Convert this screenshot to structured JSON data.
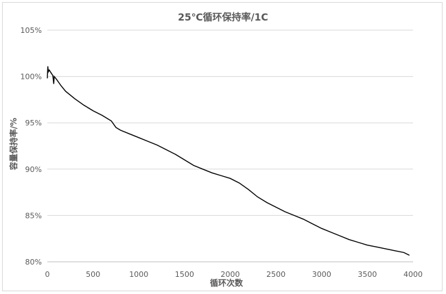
{
  "chart_data": {
    "type": "line",
    "title": "25℃循环保持率/1C",
    "xlabel": "循环次数",
    "ylabel": "容量保持率/%",
    "xlim": [
      0,
      4000
    ],
    "ylim": [
      80,
      105
    ],
    "x_ticks": [
      0,
      500,
      1000,
      1500,
      2000,
      2500,
      3000,
      3500,
      4000
    ],
    "x_tick_labels": [
      "0",
      "500",
      "1000",
      "1500",
      "2000",
      "2500",
      "3000",
      "3500",
      "4000"
    ],
    "y_ticks": [
      80,
      85,
      90,
      95,
      100,
      105
    ],
    "y_tick_labels": [
      "80%",
      "85%",
      "90%",
      "95%",
      "100%",
      "105%"
    ],
    "grid": "horizontal",
    "legend": "none",
    "series": [
      {
        "color": "#000000",
        "points": [
          [
            0,
            99.8
          ],
          [
            5,
            101.1
          ],
          [
            10,
            100.5
          ],
          [
            20,
            100.7
          ],
          [
            40,
            100.4
          ],
          [
            60,
            100.1
          ],
          [
            70,
            99.2
          ],
          [
            75,
            100.0
          ],
          [
            100,
            99.7
          ],
          [
            150,
            99.0
          ],
          [
            200,
            98.4
          ],
          [
            300,
            97.6
          ],
          [
            400,
            96.9
          ],
          [
            500,
            96.3
          ],
          [
            600,
            95.8
          ],
          [
            700,
            95.2
          ],
          [
            750,
            94.5
          ],
          [
            800,
            94.2
          ],
          [
            900,
            93.8
          ],
          [
            1000,
            93.4
          ],
          [
            1100,
            93.0
          ],
          [
            1200,
            92.6
          ],
          [
            1300,
            92.1
          ],
          [
            1400,
            91.6
          ],
          [
            1500,
            91.0
          ],
          [
            1600,
            90.4
          ],
          [
            1700,
            90.0
          ],
          [
            1800,
            89.6
          ],
          [
            1900,
            89.3
          ],
          [
            2000,
            89.0
          ],
          [
            2100,
            88.5
          ],
          [
            2200,
            87.8
          ],
          [
            2300,
            87.0
          ],
          [
            2400,
            86.4
          ],
          [
            2500,
            85.9
          ],
          [
            2600,
            85.4
          ],
          [
            2700,
            85.0
          ],
          [
            2800,
            84.6
          ],
          [
            2900,
            84.1
          ],
          [
            3000,
            83.6
          ],
          [
            3100,
            83.2
          ],
          [
            3200,
            82.8
          ],
          [
            3300,
            82.4
          ],
          [
            3400,
            82.1
          ],
          [
            3500,
            81.8
          ],
          [
            3600,
            81.6
          ],
          [
            3700,
            81.4
          ],
          [
            3800,
            81.2
          ],
          [
            3900,
            81.0
          ],
          [
            3960,
            80.7
          ]
        ]
      }
    ]
  }
}
